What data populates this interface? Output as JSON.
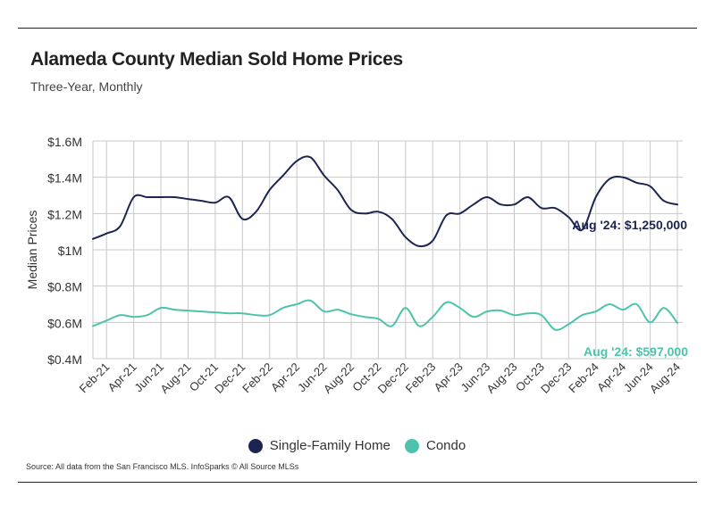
{
  "title": "Alameda County Median Sold Home Prices",
  "subtitle": "Three-Year, Monthly",
  "source": "Source:  All data from the San Francisco MLS. InfoSparks © All Source MLSs",
  "colors": {
    "single_family": "#1c2551",
    "condo": "#4ec3ac",
    "grid": "#c8c8c8"
  },
  "chart_data": {
    "type": "line",
    "ylabel": "Median Prices",
    "ylim": [
      0.4,
      1.6
    ],
    "y_ticks": [
      1.6,
      1.4,
      1.2,
      1.0,
      0.8,
      0.6,
      0.4
    ],
    "y_tick_labels": [
      "$1.6M",
      "$1.4M",
      "$1.2M",
      "$1M",
      "$0.8M",
      "$0.6M",
      "$0.4M"
    ],
    "x_tick_labels": [
      "Feb-21",
      "Apr-21",
      "Jun-21",
      "Aug-21",
      "Oct-21",
      "Dec-21",
      "Feb-22",
      "Apr-22",
      "Jun-22",
      "Aug-22",
      "Oct-22",
      "Dec-22",
      "Feb-23",
      "Apr-23",
      "Jun-23",
      "Aug-23",
      "Oct-23",
      "Dec-23",
      "Feb-24",
      "Apr-24",
      "Jun-24",
      "Aug-24"
    ],
    "x": [
      "Jan-21",
      "Feb-21",
      "Mar-21",
      "Apr-21",
      "May-21",
      "Jun-21",
      "Jul-21",
      "Aug-21",
      "Sep-21",
      "Oct-21",
      "Nov-21",
      "Dec-21",
      "Jan-22",
      "Feb-22",
      "Mar-22",
      "Apr-22",
      "May-22",
      "Jun-22",
      "Jul-22",
      "Aug-22",
      "Sep-22",
      "Oct-22",
      "Nov-22",
      "Dec-22",
      "Jan-23",
      "Feb-23",
      "Mar-23",
      "Apr-23",
      "May-23",
      "Jun-23",
      "Jul-23",
      "Aug-23",
      "Sep-23",
      "Oct-23",
      "Nov-23",
      "Dec-23",
      "Jan-24",
      "Feb-24",
      "Mar-24",
      "Apr-24",
      "May-24",
      "Jun-24",
      "Jul-24",
      "Aug-24"
    ],
    "series": [
      {
        "name": "Single-Family Home",
        "values": [
          1.06,
          1.09,
          1.13,
          1.29,
          1.29,
          1.29,
          1.29,
          1.28,
          1.27,
          1.26,
          1.29,
          1.17,
          1.21,
          1.33,
          1.41,
          1.49,
          1.51,
          1.41,
          1.33,
          1.22,
          1.2,
          1.21,
          1.17,
          1.07,
          1.02,
          1.05,
          1.19,
          1.2,
          1.25,
          1.29,
          1.25,
          1.25,
          1.29,
          1.23,
          1.23,
          1.18,
          1.11,
          1.29,
          1.39,
          1.4,
          1.37,
          1.35,
          1.27,
          1.25
        ]
      },
      {
        "name": "Condo",
        "values": [
          0.58,
          0.61,
          0.64,
          0.63,
          0.64,
          0.68,
          0.67,
          0.665,
          0.66,
          0.655,
          0.65,
          0.65,
          0.64,
          0.64,
          0.68,
          0.7,
          0.72,
          0.66,
          0.67,
          0.645,
          0.63,
          0.62,
          0.58,
          0.68,
          0.58,
          0.63,
          0.71,
          0.68,
          0.63,
          0.66,
          0.665,
          0.64,
          0.65,
          0.64,
          0.56,
          0.59,
          0.64,
          0.66,
          0.7,
          0.67,
          0.7,
          0.6,
          0.68,
          0.597
        ]
      }
    ],
    "annotations": [
      {
        "series": "Single-Family Home",
        "text": "Aug '24: $1,250,000"
      },
      {
        "series": "Condo",
        "text": "Aug '24: $597,000"
      }
    ],
    "legend": "bottom-center",
    "grid": true
  }
}
